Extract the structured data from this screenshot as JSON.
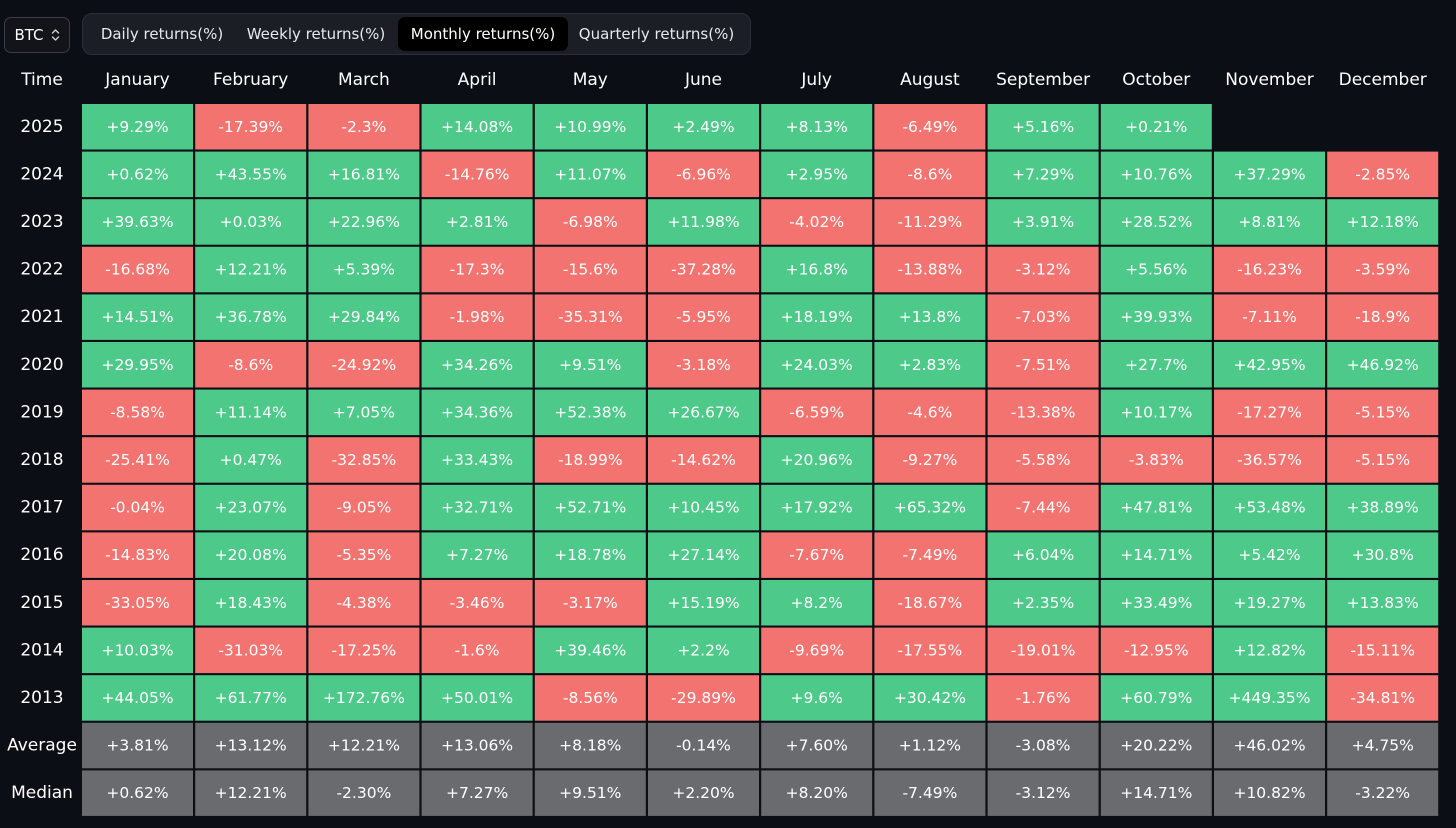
{
  "ticker": {
    "label": "BTC",
    "icon": "chevron-updown-icon"
  },
  "tabs": [
    {
      "label": "Daily returns(%)",
      "active": false
    },
    {
      "label": "Weekly returns(%)",
      "active": false
    },
    {
      "label": "Monthly returns(%)",
      "active": true
    },
    {
      "label": "Quarterly returns(%)",
      "active": false
    }
  ],
  "colors": {
    "background": "#0c0e15",
    "positive": "#4dc98a",
    "negative": "#f2736f",
    "summary": "#6a6b6e",
    "text": "#ffffff"
  },
  "chart_data": {
    "type": "heatmap",
    "corner_label": "Time",
    "columns": [
      "January",
      "February",
      "March",
      "April",
      "May",
      "June",
      "July",
      "August",
      "September",
      "October",
      "November",
      "December"
    ],
    "rows": [
      {
        "label": "2025",
        "kind": "year",
        "values": [
          "+9.29%",
          "-17.39%",
          "-2.3%",
          "+14.08%",
          "+10.99%",
          "+2.49%",
          "+8.13%",
          "-6.49%",
          "+5.16%",
          "+0.21%",
          null,
          null
        ]
      },
      {
        "label": "2024",
        "kind": "year",
        "values": [
          "+0.62%",
          "+43.55%",
          "+16.81%",
          "-14.76%",
          "+11.07%",
          "-6.96%",
          "+2.95%",
          "-8.6%",
          "+7.29%",
          "+10.76%",
          "+37.29%",
          "-2.85%"
        ]
      },
      {
        "label": "2023",
        "kind": "year",
        "values": [
          "+39.63%",
          "+0.03%",
          "+22.96%",
          "+2.81%",
          "-6.98%",
          "+11.98%",
          "-4.02%",
          "-11.29%",
          "+3.91%",
          "+28.52%",
          "+8.81%",
          "+12.18%"
        ]
      },
      {
        "label": "2022",
        "kind": "year",
        "values": [
          "-16.68%",
          "+12.21%",
          "+5.39%",
          "-17.3%",
          "-15.6%",
          "-37.28%",
          "+16.8%",
          "-13.88%",
          "-3.12%",
          "+5.56%",
          "-16.23%",
          "-3.59%"
        ]
      },
      {
        "label": "2021",
        "kind": "year",
        "values": [
          "+14.51%",
          "+36.78%",
          "+29.84%",
          "-1.98%",
          "-35.31%",
          "-5.95%",
          "+18.19%",
          "+13.8%",
          "-7.03%",
          "+39.93%",
          "-7.11%",
          "-18.9%"
        ]
      },
      {
        "label": "2020",
        "kind": "year",
        "values": [
          "+29.95%",
          "-8.6%",
          "-24.92%",
          "+34.26%",
          "+9.51%",
          "-3.18%",
          "+24.03%",
          "+2.83%",
          "-7.51%",
          "+27.7%",
          "+42.95%",
          "+46.92%"
        ]
      },
      {
        "label": "2019",
        "kind": "year",
        "values": [
          "-8.58%",
          "+11.14%",
          "+7.05%",
          "+34.36%",
          "+52.38%",
          "+26.67%",
          "-6.59%",
          "-4.6%",
          "-13.38%",
          "+10.17%",
          "-17.27%",
          "-5.15%"
        ]
      },
      {
        "label": "2018",
        "kind": "year",
        "values": [
          "-25.41%",
          "+0.47%",
          "-32.85%",
          "+33.43%",
          "-18.99%",
          "-14.62%",
          "+20.96%",
          "-9.27%",
          "-5.58%",
          "-3.83%",
          "-36.57%",
          "-5.15%"
        ]
      },
      {
        "label": "2017",
        "kind": "year",
        "values": [
          "-0.04%",
          "+23.07%",
          "-9.05%",
          "+32.71%",
          "+52.71%",
          "+10.45%",
          "+17.92%",
          "+65.32%",
          "-7.44%",
          "+47.81%",
          "+53.48%",
          "+38.89%"
        ]
      },
      {
        "label": "2016",
        "kind": "year",
        "values": [
          "-14.83%",
          "+20.08%",
          "-5.35%",
          "+7.27%",
          "+18.78%",
          "+27.14%",
          "-7.67%",
          "-7.49%",
          "+6.04%",
          "+14.71%",
          "+5.42%",
          "+30.8%"
        ]
      },
      {
        "label": "2015",
        "kind": "year",
        "values": [
          "-33.05%",
          "+18.43%",
          "-4.38%",
          "-3.46%",
          "-3.17%",
          "+15.19%",
          "+8.2%",
          "-18.67%",
          "+2.35%",
          "+33.49%",
          "+19.27%",
          "+13.83%"
        ]
      },
      {
        "label": "2014",
        "kind": "year",
        "values": [
          "+10.03%",
          "-31.03%",
          "-17.25%",
          "-1.6%",
          "+39.46%",
          "+2.2%",
          "-9.69%",
          "-17.55%",
          "-19.01%",
          "-12.95%",
          "+12.82%",
          "-15.11%"
        ]
      },
      {
        "label": "2013",
        "kind": "year",
        "values": [
          "+44.05%",
          "+61.77%",
          "+172.76%",
          "+50.01%",
          "-8.56%",
          "-29.89%",
          "+9.6%",
          "+30.42%",
          "-1.76%",
          "+60.79%",
          "+449.35%",
          "-34.81%"
        ]
      },
      {
        "label": "Average",
        "kind": "summary",
        "values": [
          "+3.81%",
          "+13.12%",
          "+12.21%",
          "+13.06%",
          "+8.18%",
          "-0.14%",
          "+7.60%",
          "+1.12%",
          "-3.08%",
          "+20.22%",
          "+46.02%",
          "+4.75%"
        ]
      },
      {
        "label": "Median",
        "kind": "summary",
        "values": [
          "+0.62%",
          "+12.21%",
          "-2.30%",
          "+7.27%",
          "+9.51%",
          "+2.20%",
          "+8.20%",
          "-7.49%",
          "-3.12%",
          "+14.71%",
          "+10.82%",
          "-3.22%"
        ]
      }
    ]
  }
}
